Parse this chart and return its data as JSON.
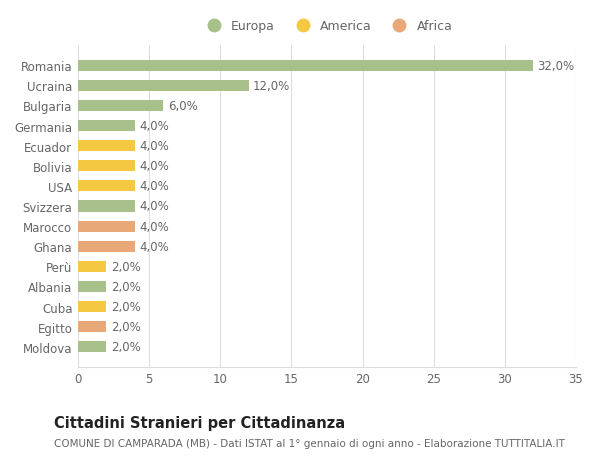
{
  "countries": [
    "Romania",
    "Ucraina",
    "Bulgaria",
    "Germania",
    "Ecuador",
    "Bolivia",
    "USA",
    "Svizzera",
    "Marocco",
    "Ghana",
    "Perù",
    "Albania",
    "Cuba",
    "Egitto",
    "Moldova"
  ],
  "values": [
    32.0,
    12.0,
    6.0,
    4.0,
    4.0,
    4.0,
    4.0,
    4.0,
    4.0,
    4.0,
    2.0,
    2.0,
    2.0,
    2.0,
    2.0
  ],
  "categories": [
    "Europa",
    "America",
    "Africa"
  ],
  "continent": [
    "Europa",
    "Europa",
    "Europa",
    "Europa",
    "America",
    "America",
    "America",
    "Europa",
    "Africa",
    "Africa",
    "America",
    "Europa",
    "America",
    "Africa",
    "Europa"
  ],
  "colors": {
    "Europa": "#a8c08a",
    "America": "#f5c842",
    "Africa": "#e8a878"
  },
  "bg_color": "#ffffff",
  "plot_bg_color": "#ffffff",
  "grid_color": "#dddddd",
  "title": "Cittadini Stranieri per Cittadinanza",
  "subtitle": "COMUNE DI CAMPARADA (MB) - Dati ISTAT al 1° gennaio di ogni anno - Elaborazione TUTTITALIA.IT",
  "xlim": [
    0,
    35
  ],
  "xticks": [
    0,
    5,
    10,
    15,
    20,
    25,
    30,
    35
  ],
  "bar_height": 0.55,
  "label_fontsize": 8.5,
  "tick_fontsize": 8.5,
  "title_fontsize": 10.5,
  "subtitle_fontsize": 7.5,
  "legend_fontsize": 9
}
